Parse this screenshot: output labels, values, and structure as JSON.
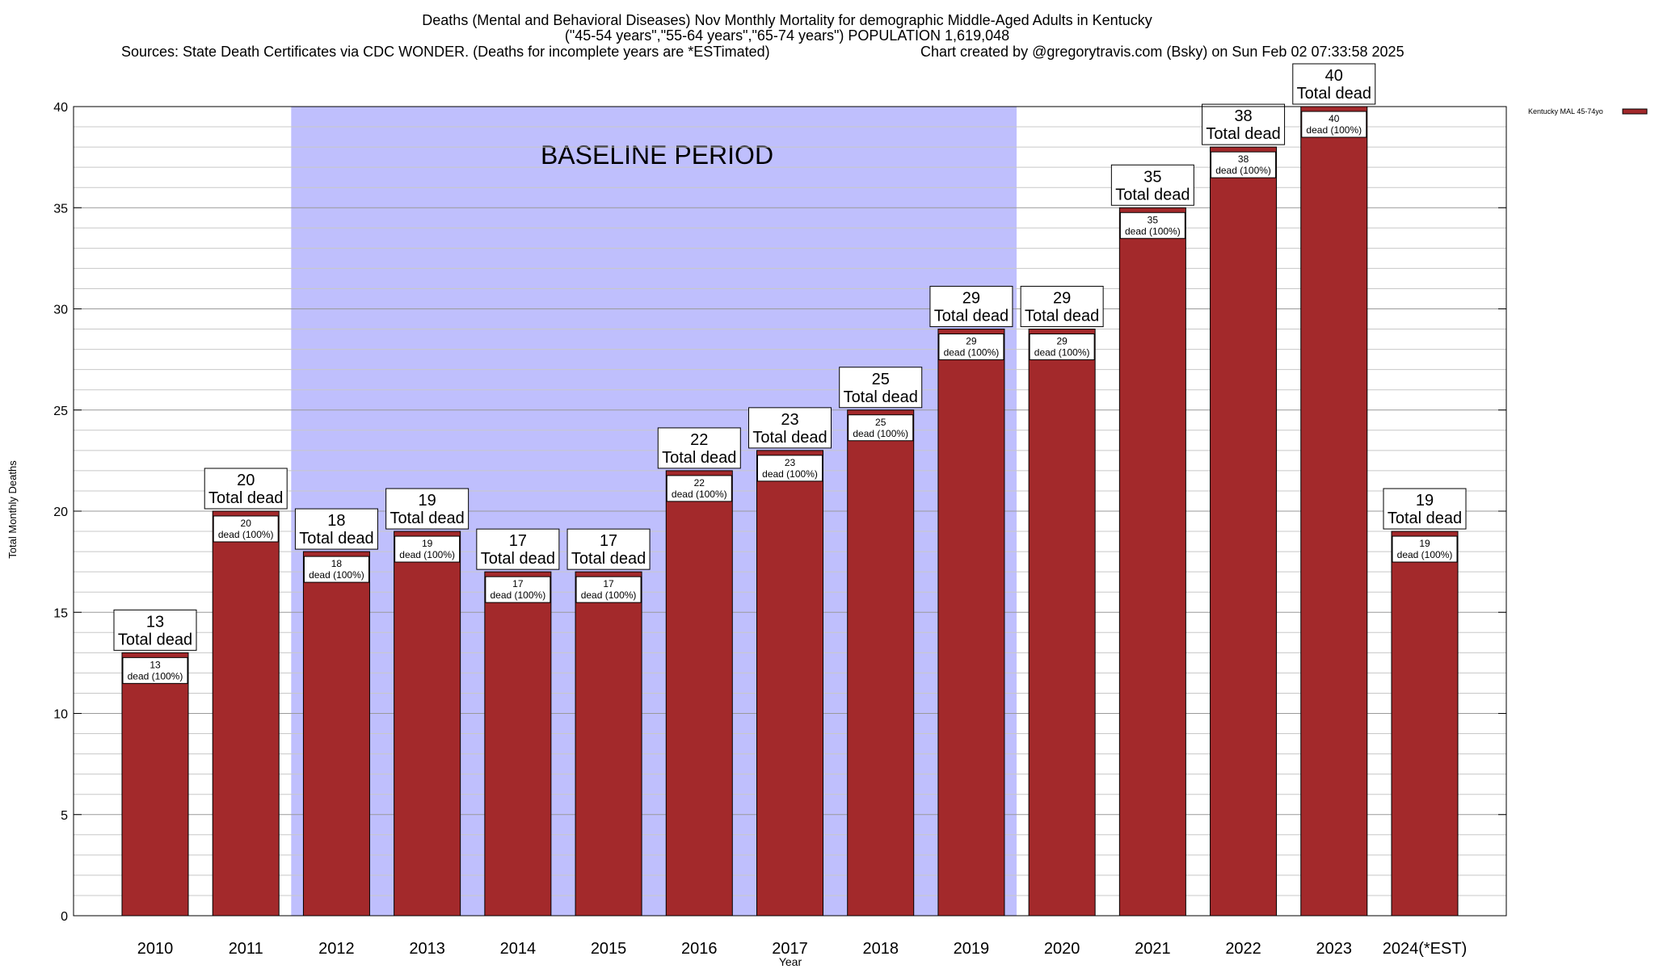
{
  "chart_data": {
    "type": "bar",
    "title_lines": [
      "Deaths (Mental and Behavioral Diseases) Nov Monthly Mortality for demographic Middle-Aged Adults in Kentucky",
      "(\"45-54 years\",\"55-64 years\",\"65-74 years\") POPULATION 1,619,048"
    ],
    "sources": "Sources: State Death Certificates via CDC WONDER. (Deaths for incomplete years are *ESTimated)",
    "credit": "Chart created by @gregorytravis.com (Bsky) on Sun Feb 02 07:33:58 2025",
    "xlabel": "Year",
    "ylabel": "Total Monthly Deaths",
    "ylim": [
      0,
      40
    ],
    "y_ticks": [
      0,
      5,
      10,
      15,
      20,
      25,
      30,
      35,
      40
    ],
    "grid": true,
    "categories": [
      "2010",
      "2011",
      "2012",
      "2013",
      "2014",
      "2015",
      "2016",
      "2017",
      "2018",
      "2019",
      "2020",
      "2021",
      "2022",
      "2023",
      "2024(*EST)"
    ],
    "series": [
      {
        "name": "Kentucky MAL 45-74yo",
        "color": "#a3292b",
        "values": [
          13,
          20,
          18,
          19,
          17,
          17,
          22,
          23,
          25,
          29,
          29,
          35,
          38,
          40,
          19
        ]
      }
    ],
    "total_label_suffix": "Total dead",
    "inner_label_suffix": "dead (100%)",
    "legend_position": "top-right",
    "baseline_region": {
      "label": "BASELINE PERIOD",
      "from": "2012",
      "to": "2019",
      "color": "#bfbffd"
    }
  }
}
